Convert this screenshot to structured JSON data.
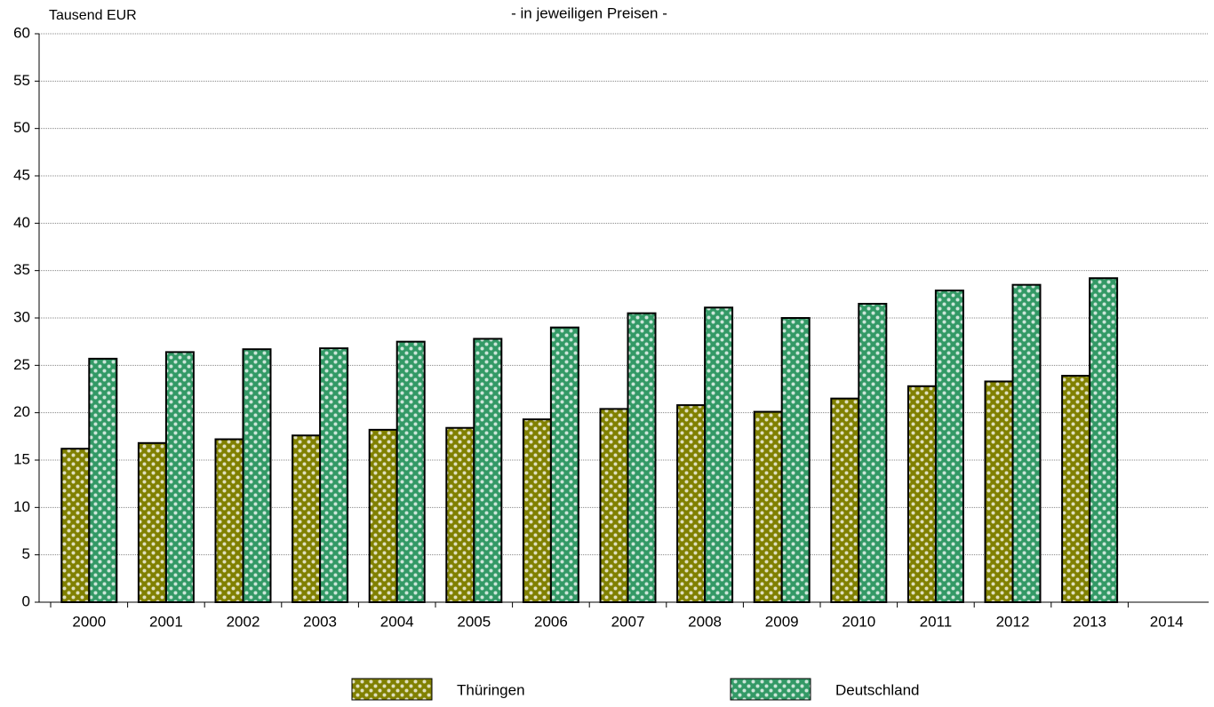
{
  "chart_data": {
    "type": "bar",
    "title": "- in jeweiligen Preisen  -",
    "y_label": "Tausend EUR",
    "categories": [
      "2000",
      "2001",
      "2002",
      "2003",
      "2004",
      "2005",
      "2006",
      "2007",
      "2008",
      "2009",
      "2010",
      "2011",
      "2012",
      "2013",
      "2014"
    ],
    "series": [
      {
        "name": "Thüringen",
        "color": "#808000",
        "values": [
          16.2,
          16.8,
          17.2,
          17.6,
          18.2,
          18.4,
          19.3,
          20.4,
          20.8,
          20.1,
          21.5,
          22.8,
          23.3,
          23.9,
          null
        ]
      },
      {
        "name": "Deutschland",
        "color": "#339966",
        "values": [
          25.7,
          26.4,
          26.7,
          26.8,
          27.5,
          27.8,
          29.0,
          30.5,
          31.1,
          30.0,
          31.5,
          32.9,
          33.5,
          34.2,
          null
        ]
      }
    ],
    "ylim": [
      0,
      60
    ],
    "yticks": [
      0,
      5,
      10,
      15,
      20,
      25,
      30,
      35,
      40,
      45,
      50,
      55,
      60
    ],
    "grid": true,
    "legend": "bottom"
  }
}
